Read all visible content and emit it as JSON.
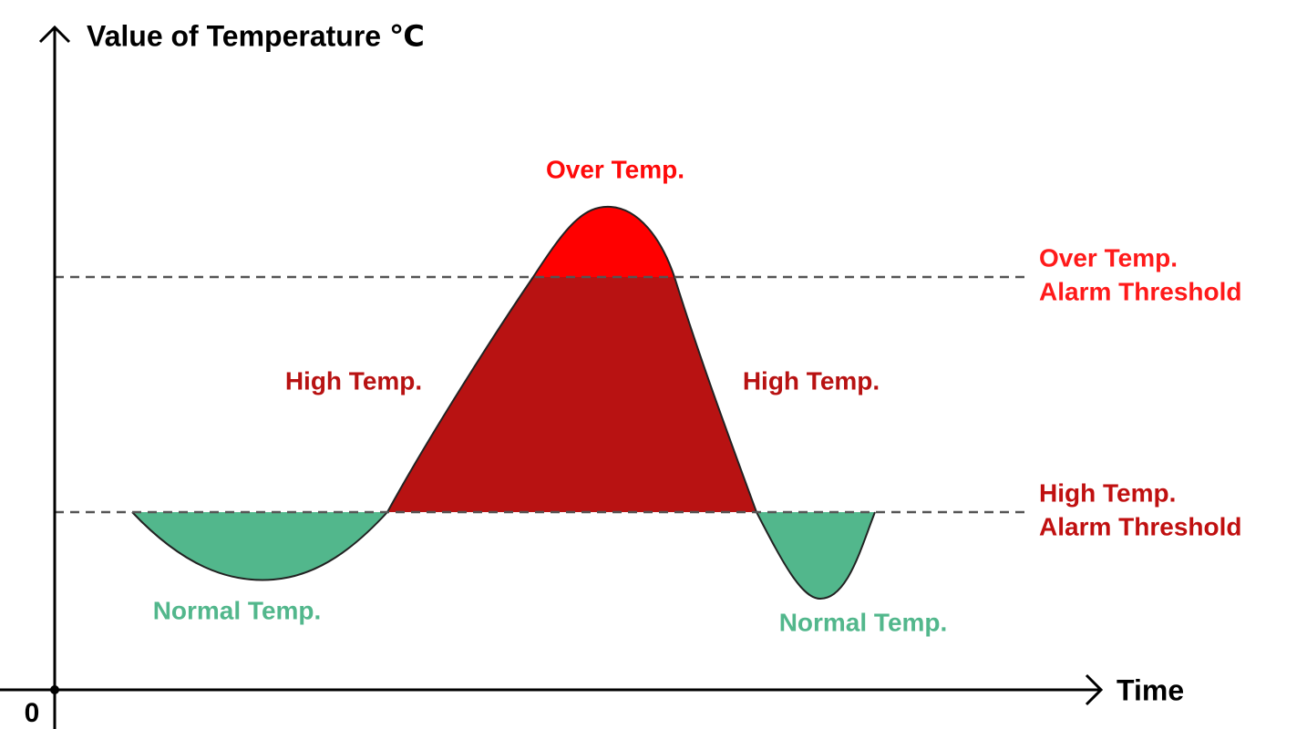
{
  "axes": {
    "y_label": "Value of Temperature ℃",
    "x_label": "Time",
    "origin": "0"
  },
  "regions": {
    "over": "Over Temp.",
    "high_left": "High Temp.",
    "high_right": "High Temp.",
    "normal_left": "Normal Temp.",
    "normal_right": "Normal Temp."
  },
  "thresholds": [
    {
      "lines": [
        "Over Temp.",
        "Alarm Threshold"
      ]
    },
    {
      "lines": [
        "High Temp.",
        "Alarm Threshold"
      ]
    }
  ]
}
